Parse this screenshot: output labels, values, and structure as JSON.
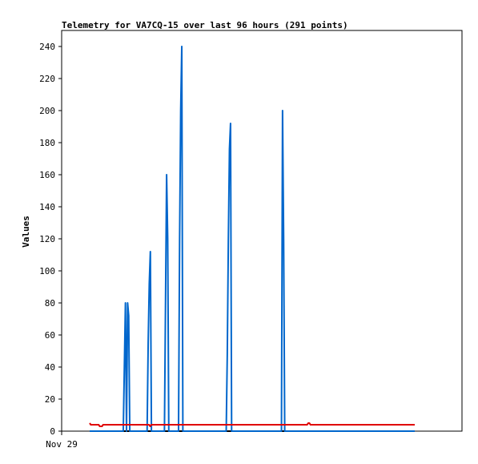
{
  "chart_data": {
    "type": "line",
    "title": "Telemetry for VA7CQ-15 over last 96 hours (291 points)",
    "xlabel": "",
    "ylabel": "Values",
    "x_tick_labels": [
      "Nov 29"
    ],
    "ylim": [
      0,
      250
    ],
    "y_ticks": [
      0,
      20,
      40,
      60,
      80,
      100,
      120,
      140,
      160,
      180,
      200,
      220,
      240
    ],
    "grid": false,
    "legend": "none",
    "colors": {
      "blue": "#0066cc",
      "red": "#e00000",
      "black": "#000000",
      "frame": "#000000"
    },
    "series": [
      {
        "color": "blue",
        "values": [
          0,
          0,
          0,
          0,
          0,
          0,
          0,
          0,
          0,
          0,
          0,
          0,
          0,
          0,
          0,
          0,
          0,
          0,
          0,
          0,
          0,
          0,
          0,
          0,
          0,
          0,
          0,
          0,
          0,
          0,
          0,
          0,
          40,
          80,
          0,
          80,
          72,
          0,
          0,
          0,
          0,
          0,
          0,
          0,
          0,
          0,
          0,
          0,
          0,
          0,
          0,
          0,
          0,
          0,
          55,
          92,
          112,
          0,
          0,
          0,
          0,
          0,
          0,
          0,
          0,
          0,
          0,
          0,
          0,
          0,
          80,
          160,
          120,
          0,
          0,
          0,
          0,
          0,
          0,
          0,
          0,
          0,
          0,
          120,
          200,
          240,
          0,
          0,
          0,
          0,
          0,
          0,
          0,
          0,
          0,
          0,
          0,
          0,
          0,
          0,
          0,
          0,
          0,
          0,
          0,
          0,
          0,
          0,
          0,
          0,
          0,
          0,
          0,
          0,
          0,
          0,
          0,
          0,
          0,
          0,
          0,
          0,
          0,
          0,
          0,
          0,
          0,
          48,
          120,
          176,
          192,
          0,
          0,
          0,
          0,
          0,
          0,
          0,
          0,
          0,
          0,
          0,
          0,
          0,
          0,
          0,
          0,
          0,
          0,
          0,
          0,
          0,
          0,
          0,
          0,
          0,
          0,
          0,
          0,
          0,
          0,
          0,
          0,
          0,
          0,
          0,
          0,
          0,
          0,
          0,
          0,
          0,
          0,
          0,
          0,
          0,
          0,
          0,
          200,
          120,
          0,
          0,
          0,
          0,
          0,
          0,
          0,
          0,
          0,
          0,
          0,
          0,
          0,
          0,
          0,
          0,
          0,
          0,
          0,
          0,
          0,
          0,
          0,
          0,
          0,
          0,
          0,
          0,
          0,
          0,
          0,
          0,
          0,
          0,
          0,
          0,
          0,
          0,
          0,
          0,
          0,
          0,
          0,
          0,
          0,
          0,
          0,
          0,
          0,
          0,
          0,
          0,
          0,
          0,
          0,
          0,
          0,
          0,
          0,
          0,
          0,
          0,
          0,
          0,
          0,
          0,
          0,
          0,
          0,
          0,
          0,
          0,
          0,
          0,
          0,
          0,
          0,
          0,
          0,
          0,
          0,
          0,
          0,
          0,
          0,
          0,
          0,
          0,
          0,
          0,
          0,
          0,
          0,
          0,
          0,
          0,
          0,
          0,
          0,
          0,
          0,
          0,
          0,
          0,
          0,
          0,
          0,
          0,
          0,
          0,
          0,
          0,
          0,
          0,
          0,
          0,
          0,
          0,
          0,
          0,
          0
        ]
      },
      {
        "color": "red",
        "values": [
          5,
          4,
          4,
          4,
          4,
          4,
          4,
          4,
          4,
          3,
          3,
          3,
          4,
          4,
          4,
          4,
          4,
          4,
          4,
          4,
          4,
          4,
          4,
          4,
          4,
          4,
          4,
          4,
          4,
          4,
          4,
          4,
          4,
          4,
          4,
          4,
          4,
          4,
          4,
          4,
          4,
          4,
          4,
          4,
          4,
          4,
          4,
          4,
          4,
          4,
          4,
          4,
          4,
          4,
          3,
          4,
          4,
          4,
          4,
          4,
          4,
          4,
          4,
          4,
          4,
          4,
          4,
          4,
          4,
          4,
          4,
          4,
          4,
          4,
          4,
          4,
          4,
          4,
          4,
          4,
          4,
          4,
          4,
          4,
          4,
          4,
          4,
          4,
          4,
          4,
          4,
          4,
          4,
          4,
          4,
          4,
          4,
          4,
          4,
          4,
          4,
          4,
          4,
          4,
          4,
          4,
          4,
          4,
          4,
          4,
          4,
          4,
          4,
          4,
          4,
          4,
          4,
          4,
          4,
          4,
          4,
          4,
          4,
          4,
          4,
          4,
          4,
          4,
          4,
          4,
          4,
          4,
          4,
          4,
          4,
          4,
          4,
          4,
          4,
          4,
          4,
          4,
          4,
          4,
          4,
          4,
          4,
          4,
          4,
          4,
          4,
          4,
          4,
          4,
          4,
          4,
          4,
          4,
          4,
          4,
          4,
          4,
          4,
          4,
          4,
          4,
          4,
          4,
          4,
          4,
          4,
          4,
          4,
          4,
          4,
          4,
          4,
          4,
          4,
          4,
          4,
          4,
          4,
          4,
          4,
          4,
          4,
          4,
          4,
          4,
          4,
          4,
          4,
          4,
          4,
          5,
          5,
          4,
          4,
          4,
          4,
          4,
          4,
          4,
          4,
          4,
          4,
          4,
          4,
          4,
          4,
          4,
          4,
          4,
          4,
          4,
          4,
          4,
          4,
          4,
          4,
          4,
          4,
          4,
          4,
          4,
          4,
          4,
          4,
          4,
          4,
          4,
          4,
          4,
          4,
          4,
          4,
          4,
          4,
          4,
          4,
          4,
          4,
          4,
          4,
          4,
          4,
          4,
          4,
          4,
          4,
          4,
          4,
          4,
          4,
          4,
          4,
          4,
          4,
          4,
          4,
          4,
          4,
          4,
          4,
          4,
          4,
          4,
          4,
          4,
          4,
          4,
          4,
          4,
          4,
          4,
          4,
          4,
          4,
          4,
          4,
          4,
          4,
          4,
          4,
          4,
          4,
          4,
          4,
          4,
          4
        ]
      },
      {
        "color": "black",
        "values": [
          0,
          0,
          0,
          0,
          0,
          0,
          0,
          0,
          0,
          0,
          0,
          0,
          0,
          0,
          0,
          0,
          0,
          0,
          0,
          0,
          0,
          0,
          0,
          0,
          0,
          0,
          0,
          0,
          0,
          0,
          0,
          0,
          0,
          0,
          0,
          0,
          0,
          0,
          0,
          0,
          0,
          0,
          0,
          0,
          0,
          0,
          0,
          0,
          0,
          0,
          0,
          0,
          0,
          0,
          0,
          0,
          0,
          0,
          0,
          0,
          0,
          0,
          0,
          0,
          0,
          0,
          0,
          0,
          0,
          0,
          0,
          0,
          0,
          0,
          0,
          0,
          0,
          0,
          0,
          0,
          0,
          0,
          0,
          0,
          0,
          0,
          0,
          0,
          0,
          0,
          0,
          0,
          0,
          0,
          0,
          0,
          0,
          0,
          0,
          0,
          0,
          0,
          0,
          0,
          0,
          0,
          0,
          0,
          0,
          0,
          0,
          0,
          0,
          0,
          0,
          0,
          0,
          0,
          0,
          0,
          0,
          0,
          0,
          0,
          0,
          0,
          0,
          0,
          0,
          0,
          0,
          0,
          0,
          0,
          0,
          0,
          0,
          0,
          0,
          0,
          0,
          0,
          0,
          0,
          0,
          0,
          0,
          0,
          0,
          0,
          0,
          0,
          0,
          0,
          0,
          0,
          0,
          0,
          0,
          0,
          0,
          0,
          0,
          0,
          0,
          0,
          0,
          0,
          0,
          0,
          0,
          0,
          0,
          0,
          0,
          0,
          0,
          0,
          0,
          0,
          0,
          0,
          0,
          0,
          0,
          0,
          0,
          0,
          0,
          0,
          0,
          0,
          0,
          0,
          0,
          0,
          0,
          0,
          0,
          0,
          0,
          0,
          0,
          0,
          0,
          0,
          0,
          0,
          0,
          0,
          0,
          0,
          0,
          0,
          0,
          0,
          0,
          0,
          0,
          0,
          0,
          0,
          0,
          0,
          0,
          0,
          0,
          0,
          0,
          0,
          0,
          0,
          0,
          0,
          0,
          0,
          0,
          0,
          0,
          0,
          0,
          0,
          0,
          0,
          0,
          0,
          0,
          0,
          0,
          0,
          0,
          0,
          0,
          0,
          0,
          0,
          0,
          0,
          0,
          0,
          0,
          0,
          0,
          0,
          0,
          0,
          0,
          0,
          0,
          0,
          0,
          0,
          0,
          0,
          0,
          0,
          0,
          0,
          0,
          0,
          0,
          0,
          0,
          0,
          0,
          0,
          0,
          0,
          0,
          0,
          0
        ]
      }
    ]
  }
}
